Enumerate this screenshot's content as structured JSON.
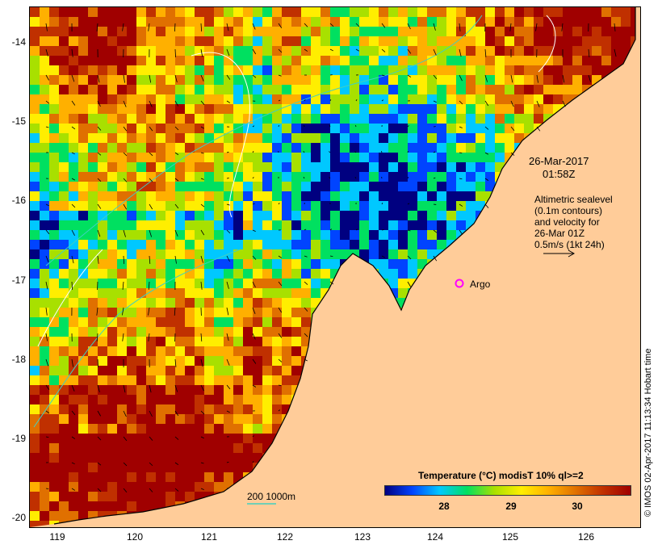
{
  "map": {
    "y_ticks": [
      "-14",
      "-15",
      "-16",
      "-17",
      "-18",
      "-19",
      "-20"
    ],
    "x_ticks": [
      "119",
      "120",
      "121",
      "122",
      "123",
      "124",
      "125",
      "126"
    ],
    "timestamp_date": "26-Mar-2017",
    "timestamp_time": "01:58Z",
    "altimetry_lines": [
      "Altimetric sealevel",
      "(0.1m contours)",
      "and velocity for",
      "26-Mar 01Z",
      "0.5m/s (1kt 24h)"
    ],
    "argo_label": "Argo",
    "scale_label": "200  1000m",
    "legend_title": "Temperature (°C) modisT 10% ql>=2",
    "colorbar_ticks": [
      "28",
      "29",
      "30"
    ],
    "copyright": "© IMOS 02-Apr-2017 11:13:34 Hobart time",
    "colors": {
      "land": "#ffcc99",
      "palette": [
        "#000080",
        "#0044ff",
        "#00c8ff",
        "#00e060",
        "#a8e000",
        "#ffee00",
        "#ffb000",
        "#e07000",
        "#c03000",
        "#a00000"
      ]
    },
    "icons": {
      "argo": "magenta-circle-icon",
      "velocity_key": "arrow-right-icon"
    }
  }
}
